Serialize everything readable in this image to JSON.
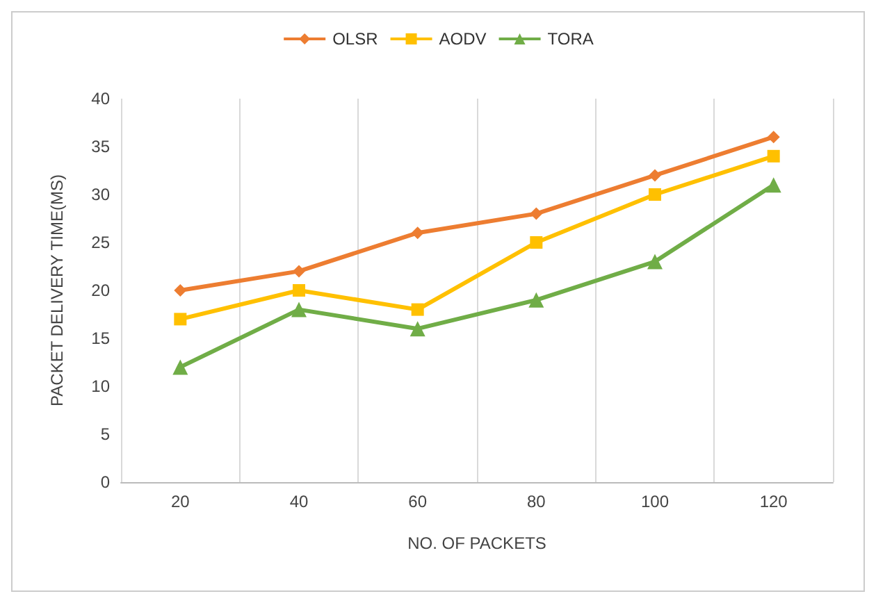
{
  "chart_data": {
    "type": "line",
    "xlabel": "NO. OF PACKETS",
    "ylabel": "PACKET DELIVERY TIME(MS)",
    "categories": [
      "20",
      "40",
      "60",
      "80",
      "100",
      "120"
    ],
    "series": [
      {
        "name": "OLSR",
        "color": "#ed7d31",
        "marker": "diamond",
        "values": [
          20,
          22,
          26,
          28,
          32,
          36
        ]
      },
      {
        "name": "AODV",
        "color": "#ffc000",
        "marker": "square",
        "values": [
          17,
          20,
          18,
          25,
          30,
          34
        ]
      },
      {
        "name": "TORA",
        "color": "#70ad47",
        "marker": "triangle",
        "values": [
          12,
          18,
          16,
          19,
          23,
          31
        ]
      }
    ],
    "ylim": [
      0,
      40
    ],
    "yticks": [
      0,
      5,
      10,
      15,
      20,
      25,
      30,
      35,
      40
    ],
    "grid": "x",
    "legend": "top",
    "line_style": "solid"
  }
}
